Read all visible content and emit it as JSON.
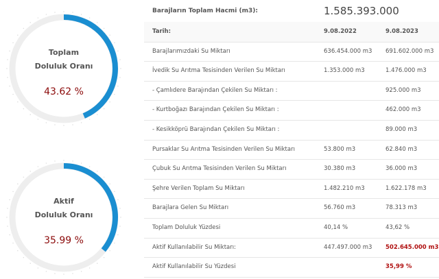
{
  "gauges": [
    {
      "title": [
        "Toplam",
        "Doluluk Oranı"
      ],
      "value": 43.62,
      "value_label": "43.62 %",
      "range": [
        0,
        100
      ]
    },
    {
      "title": [
        "Aktif",
        "Doluluk Oranı"
      ],
      "value": 35.99,
      "value_label": "35.99 %",
      "range": [
        0,
        100
      ]
    }
  ],
  "header": {
    "label": "Barajların Toplam Hacmi (m3):",
    "value": "1.585.393.000"
  },
  "table": {
    "rows": [
      [
        "Tarih:",
        "9.08.2022",
        "9.08.2023"
      ],
      [
        "Barajlarımızdaki Su Miktarı",
        "636.454.000 m3",
        "691.602.000 m3"
      ],
      [
        "İvedik Su Arıtma Tesisinden Verilen Su Miktarı",
        "1.353.000 m3",
        "1.476.000 m3"
      ],
      [
        "- Çamlıdere Barajından Çekilen Su Miktarı :",
        null,
        "925.000 m3"
      ],
      [
        "- Kurtboğazı Barajından Çekilen Su Miktarı :",
        null,
        "462.000 m3"
      ],
      [
        "- Kesikköprü Barajından Çekilen Su Miktarı :",
        null,
        "89.000 m3"
      ],
      [
        "Pursaklar Su Arıtma Tesisinden Verilen Su Miktarı",
        "53.800 m3",
        "62.840 m3"
      ],
      [
        "Çubuk Su Arıtma Tesisinden Verilen Su Miktarı",
        "30.380 m3",
        "36.000 m3"
      ],
      [
        "Şehre Verilen Toplam Su Miktarı",
        "1.482.210 m3",
        "1.622.178 m3"
      ],
      [
        "Barajlara Gelen Su Miktarı",
        "56.760 m3",
        "78.313 m3"
      ],
      [
        "Toplam Doluluk Yüzdesi",
        "40,14 %",
        "43,62 %"
      ],
      [
        "Aktif Kullanılabilir Su Miktarı:",
        "447.497.000 m3",
        "502.645.000 m3"
      ],
      [
        "Aktif Kullanılabilir Su Yüzdesi",
        null,
        "35,99 %"
      ]
    ]
  }
}
